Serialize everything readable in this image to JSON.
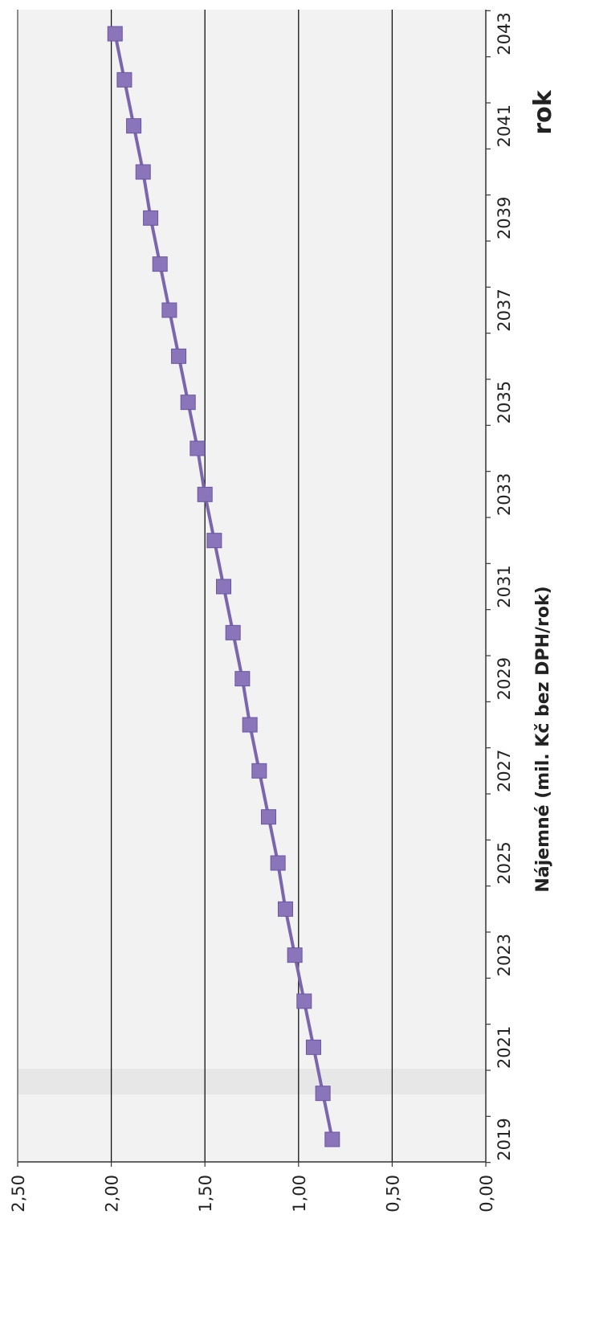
{
  "chart_data": {
    "type": "line",
    "orientation": "rotated-90-clockwise",
    "xlabel": "rok",
    "ylabel": "Nájemné (mil. Kč bez DPH/rok)",
    "ylim": [
      0,
      2.5
    ],
    "y_ticks": [
      "0,00",
      "0,50",
      "1,00",
      "1,50",
      "2,00",
      "2,50"
    ],
    "y_tick_values": [
      0,
      0.5,
      1,
      1.5,
      2,
      2.5
    ],
    "x_tick_labels": [
      "2019",
      "2021",
      "2023",
      "2025",
      "2027",
      "2029",
      "2031",
      "2033",
      "2035",
      "2037",
      "2039",
      "2041",
      "2043"
    ],
    "x_tick_values": [
      2019,
      2021,
      2023,
      2025,
      2027,
      2029,
      2031,
      2033,
      2035,
      2037,
      2039,
      2041,
      2043
    ],
    "grid": true,
    "line_color": "#7b66ad",
    "marker_color": "#8a75ba",
    "x": [
      2019,
      2020,
      2021,
      2022,
      2023,
      2024,
      2025,
      2026,
      2027,
      2028,
      2029,
      2030,
      2031,
      2032,
      2033,
      2034,
      2035,
      2036,
      2037,
      2038,
      2039,
      2040,
      2041,
      2042,
      2043
    ],
    "values": [
      0.82,
      0.87,
      0.92,
      0.97,
      1.02,
      1.07,
      1.11,
      1.16,
      1.21,
      1.26,
      1.3,
      1.35,
      1.4,
      1.45,
      1.5,
      1.54,
      1.59,
      1.64,
      1.69,
      1.74,
      1.79,
      1.83,
      1.88,
      1.93,
      1.98
    ]
  }
}
